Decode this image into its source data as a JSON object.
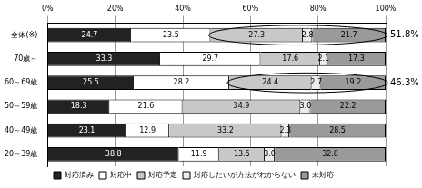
{
  "chart_data": {
    "type": "bar",
    "orientation": "horizontal",
    "stacked": true,
    "data_labels": true,
    "grid": true,
    "legend": "bottom",
    "categories": [
      "全体(※)",
      "70歳～",
      "60～69歳",
      "50～59歳",
      "40～49歳",
      "20～39歳"
    ],
    "series": [
      {
        "name": "対応済み",
        "color": "#222222",
        "values": [
          24.7,
          33.3,
          25.5,
          18.3,
          23.1,
          38.8
        ]
      },
      {
        "name": "対応中",
        "color": "#ffffff",
        "values": [
          23.5,
          29.7,
          28.2,
          21.6,
          12.9,
          11.9
        ]
      },
      {
        "name": "対応予定",
        "color": "#c8c8c8",
        "values": [
          27.3,
          17.6,
          24.4,
          34.9,
          33.2,
          13.5
        ]
      },
      {
        "name": "対応したいが方法がわからない",
        "color": "#ececec",
        "values": [
          2.8,
          2.1,
          2.7,
          3.0,
          2.3,
          3.0
        ],
        "value_labels": [
          "2.8",
          "2.1",
          "2.7",
          "3.0",
          "2.3",
          "3.0"
        ]
      },
      {
        "name": "未対応",
        "color": "#9a9a9a",
        "values": [
          21.7,
          17.3,
          19.2,
          22.2,
          28.5,
          32.8
        ]
      }
    ],
    "xlim": [
      0,
      100
    ],
    "xticks": [
      {
        "value": 0,
        "label": "0%"
      },
      {
        "value": 20,
        "label": "20%"
      },
      {
        "value": 40,
        "label": "40%"
      },
      {
        "value": 60,
        "label": "60%"
      },
      {
        "value": 80,
        "label": "80%"
      },
      {
        "value": 100,
        "label": "100%"
      }
    ],
    "annotations": [
      {
        "text": "51.8%",
        "category": "全体(※)"
      },
      {
        "text": "46.3%",
        "category": "60～69歳"
      }
    ]
  }
}
